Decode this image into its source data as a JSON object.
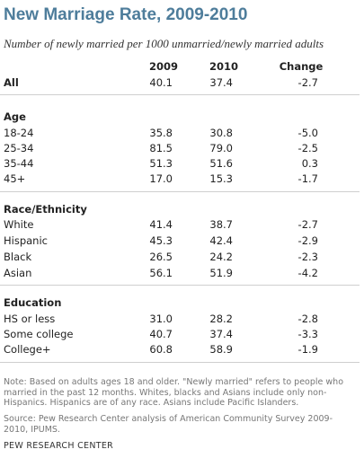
{
  "title": "New Marriage Rate, 2009-2010",
  "subtitle": "Number of newly married per 1000 unmarried/newly married adults",
  "columns": [
    "2009",
    "2010",
    "Change"
  ],
  "chart_data": {
    "type": "table",
    "title": "New Marriage Rate, 2009-2010",
    "subtitle": "Number of newly married per 1000 unmarried/newly married adults",
    "columns": [
      "2009",
      "2010",
      "Change"
    ],
    "all": {
      "label": "All",
      "v2009": "40.1",
      "v2010": "37.4",
      "change": "-2.7"
    },
    "sections": [
      {
        "heading": "Age",
        "rows": [
          {
            "label": "18-24",
            "v2009": "35.8",
            "v2010": "30.8",
            "change": "-5.0"
          },
          {
            "label": "25-34",
            "v2009": "81.5",
            "v2010": "79.0",
            "change": "-2.5"
          },
          {
            "label": "35-44",
            "v2009": "51.3",
            "v2010": "51.6",
            "change": "0.3"
          },
          {
            "label": "45+",
            "v2009": "17.0",
            "v2010": "15.3",
            "change": "-1.7"
          }
        ]
      },
      {
        "heading": "Race/Ethnicity",
        "rows": [
          {
            "label": "White",
            "v2009": "41.4",
            "v2010": "38.7",
            "change": "-2.7"
          },
          {
            "label": "Hispanic",
            "v2009": "45.3",
            "v2010": "42.4",
            "change": "-2.9"
          },
          {
            "label": "Black",
            "v2009": "26.5",
            "v2010": "24.2",
            "change": "-2.3"
          },
          {
            "label": "Asian",
            "v2009": "56.1",
            "v2010": "51.9",
            "change": "-4.2"
          }
        ]
      },
      {
        "heading": "Education",
        "rows": [
          {
            "label": "HS or less",
            "v2009": "31.0",
            "v2010": "28.2",
            "change": "-2.8"
          },
          {
            "label": "Some college",
            "v2009": "40.7",
            "v2010": "37.4",
            "change": "-3.3"
          },
          {
            "label": "College+",
            "v2009": "60.8",
            "v2010": "58.9",
            "change": "-1.9"
          }
        ]
      }
    ]
  },
  "note": "Note: Based on adults ages 18 and older. \"Newly married\" refers to people who married in the past 12 months. Whites, blacks and Asians include only non-Hispanics. Hispanics are of any race. Asians include Pacific Islanders.",
  "source": "Source: Pew Research Center analysis of American Community Survey 2009-2010, IPUMS.",
  "brand": "PEW RESEARCH CENTER",
  "colors": {
    "title": "#4e7d9b",
    "rule": "#cfcfcf",
    "note": "#777777"
  }
}
